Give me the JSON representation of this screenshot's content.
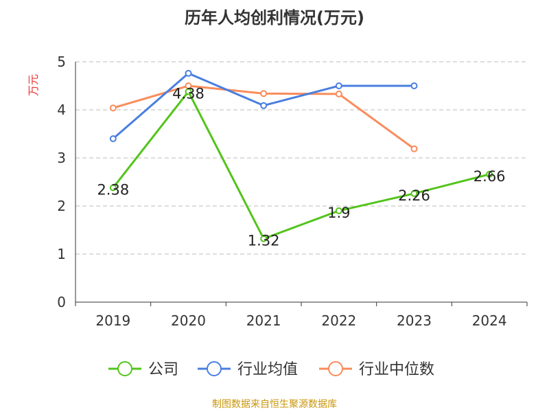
{
  "chart_data": {
    "type": "line",
    "title": "历年人均创利情况(万元)",
    "ylabel": "万元",
    "xlabel": "",
    "categories": [
      "2019",
      "2020",
      "2021",
      "2022",
      "2023",
      "2024"
    ],
    "ylim": [
      0,
      5
    ],
    "yticks": [
      0,
      1,
      2,
      3,
      4,
      5
    ],
    "grid": true,
    "legend_position": "bottom",
    "series": [
      {
        "name": "公司",
        "color": "#52c41a",
        "values": [
          2.38,
          4.38,
          1.32,
          1.9,
          2.26,
          2.66
        ],
        "labels": [
          "2.38",
          "4.38",
          "1.32",
          "1.9",
          "2.26",
          "2.66"
        ]
      },
      {
        "name": "行业均值",
        "color": "#4a7ee0",
        "values": [
          3.4,
          4.76,
          4.09,
          4.5,
          4.5,
          null
        ]
      },
      {
        "name": "行业中位数",
        "color": "#fa8c5a",
        "values": [
          4.04,
          4.5,
          4.34,
          4.33,
          3.19,
          null
        ]
      }
    ]
  },
  "source": "制图数据来自恒生聚源数据库"
}
